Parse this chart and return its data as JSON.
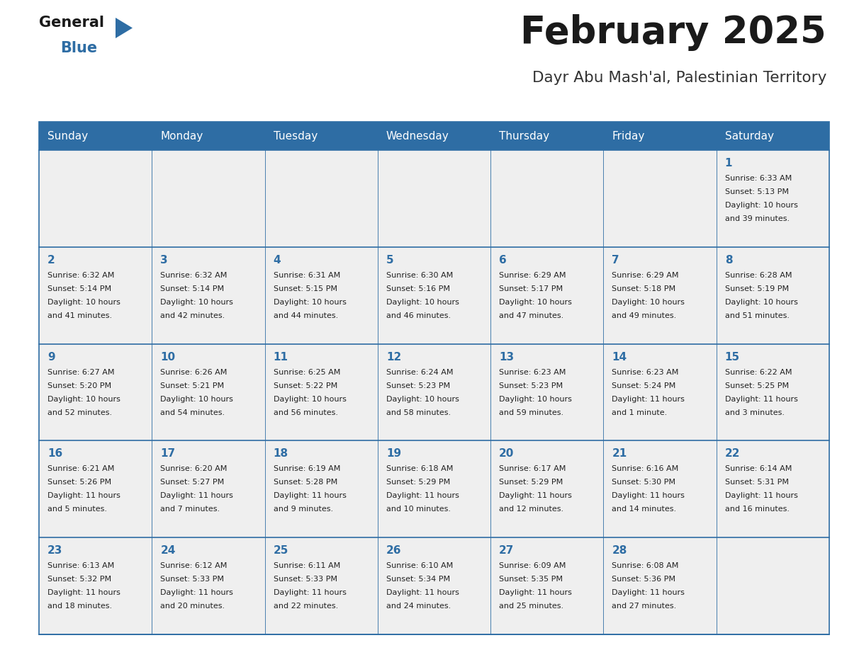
{
  "title": "February 2025",
  "subtitle": "Dayr Abu Mash'al, Palestinian Territory",
  "days_of_week": [
    "Sunday",
    "Monday",
    "Tuesday",
    "Wednesday",
    "Thursday",
    "Friday",
    "Saturday"
  ],
  "header_bg": "#2E6DA4",
  "header_text": "#FFFFFF",
  "cell_bg": "#EFEFEF",
  "border_color": "#2E6DA4",
  "day_num_color": "#2E6DA4",
  "cell_text_color": "#222222",
  "title_color": "#1a1a1a",
  "subtitle_color": "#333333",
  "logo_general_color": "#1a1a1a",
  "logo_blue_color": "#2E6DA4",
  "calendar_data": [
    [
      null,
      null,
      null,
      null,
      null,
      null,
      {
        "day": "1",
        "sunrise": "6:33 AM",
        "sunset": "5:13 PM",
        "daylight": "10 hours",
        "daylight2": "and 39 minutes."
      }
    ],
    [
      {
        "day": "2",
        "sunrise": "6:32 AM",
        "sunset": "5:14 PM",
        "daylight": "10 hours",
        "daylight2": "and 41 minutes."
      },
      {
        "day": "3",
        "sunrise": "6:32 AM",
        "sunset": "5:14 PM",
        "daylight": "10 hours",
        "daylight2": "and 42 minutes."
      },
      {
        "day": "4",
        "sunrise": "6:31 AM",
        "sunset": "5:15 PM",
        "daylight": "10 hours",
        "daylight2": "and 44 minutes."
      },
      {
        "day": "5",
        "sunrise": "6:30 AM",
        "sunset": "5:16 PM",
        "daylight": "10 hours",
        "daylight2": "and 46 minutes."
      },
      {
        "day": "6",
        "sunrise": "6:29 AM",
        "sunset": "5:17 PM",
        "daylight": "10 hours",
        "daylight2": "and 47 minutes."
      },
      {
        "day": "7",
        "sunrise": "6:29 AM",
        "sunset": "5:18 PM",
        "daylight": "10 hours",
        "daylight2": "and 49 minutes."
      },
      {
        "day": "8",
        "sunrise": "6:28 AM",
        "sunset": "5:19 PM",
        "daylight": "10 hours",
        "daylight2": "and 51 minutes."
      }
    ],
    [
      {
        "day": "9",
        "sunrise": "6:27 AM",
        "sunset": "5:20 PM",
        "daylight": "10 hours",
        "daylight2": "and 52 minutes."
      },
      {
        "day": "10",
        "sunrise": "6:26 AM",
        "sunset": "5:21 PM",
        "daylight": "10 hours",
        "daylight2": "and 54 minutes."
      },
      {
        "day": "11",
        "sunrise": "6:25 AM",
        "sunset": "5:22 PM",
        "daylight": "10 hours",
        "daylight2": "and 56 minutes."
      },
      {
        "day": "12",
        "sunrise": "6:24 AM",
        "sunset": "5:23 PM",
        "daylight": "10 hours",
        "daylight2": "and 58 minutes."
      },
      {
        "day": "13",
        "sunrise": "6:23 AM",
        "sunset": "5:23 PM",
        "daylight": "10 hours",
        "daylight2": "and 59 minutes."
      },
      {
        "day": "14",
        "sunrise": "6:23 AM",
        "sunset": "5:24 PM",
        "daylight": "11 hours",
        "daylight2": "and 1 minute."
      },
      {
        "day": "15",
        "sunrise": "6:22 AM",
        "sunset": "5:25 PM",
        "daylight": "11 hours",
        "daylight2": "and 3 minutes."
      }
    ],
    [
      {
        "day": "16",
        "sunrise": "6:21 AM",
        "sunset": "5:26 PM",
        "daylight": "11 hours",
        "daylight2": "and 5 minutes."
      },
      {
        "day": "17",
        "sunrise": "6:20 AM",
        "sunset": "5:27 PM",
        "daylight": "11 hours",
        "daylight2": "and 7 minutes."
      },
      {
        "day": "18",
        "sunrise": "6:19 AM",
        "sunset": "5:28 PM",
        "daylight": "11 hours",
        "daylight2": "and 9 minutes."
      },
      {
        "day": "19",
        "sunrise": "6:18 AM",
        "sunset": "5:29 PM",
        "daylight": "11 hours",
        "daylight2": "and 10 minutes."
      },
      {
        "day": "20",
        "sunrise": "6:17 AM",
        "sunset": "5:29 PM",
        "daylight": "11 hours",
        "daylight2": "and 12 minutes."
      },
      {
        "day": "21",
        "sunrise": "6:16 AM",
        "sunset": "5:30 PM",
        "daylight": "11 hours",
        "daylight2": "and 14 minutes."
      },
      {
        "day": "22",
        "sunrise": "6:14 AM",
        "sunset": "5:31 PM",
        "daylight": "11 hours",
        "daylight2": "and 16 minutes."
      }
    ],
    [
      {
        "day": "23",
        "sunrise": "6:13 AM",
        "sunset": "5:32 PM",
        "daylight": "11 hours",
        "daylight2": "and 18 minutes."
      },
      {
        "day": "24",
        "sunrise": "6:12 AM",
        "sunset": "5:33 PM",
        "daylight": "11 hours",
        "daylight2": "and 20 minutes."
      },
      {
        "day": "25",
        "sunrise": "6:11 AM",
        "sunset": "5:33 PM",
        "daylight": "11 hours",
        "daylight2": "and 22 minutes."
      },
      {
        "day": "26",
        "sunrise": "6:10 AM",
        "sunset": "5:34 PM",
        "daylight": "11 hours",
        "daylight2": "and 24 minutes."
      },
      {
        "day": "27",
        "sunrise": "6:09 AM",
        "sunset": "5:35 PM",
        "daylight": "11 hours",
        "daylight2": "and 25 minutes."
      },
      {
        "day": "28",
        "sunrise": "6:08 AM",
        "sunset": "5:36 PM",
        "daylight": "11 hours",
        "daylight2": "and 27 minutes."
      },
      null
    ]
  ]
}
